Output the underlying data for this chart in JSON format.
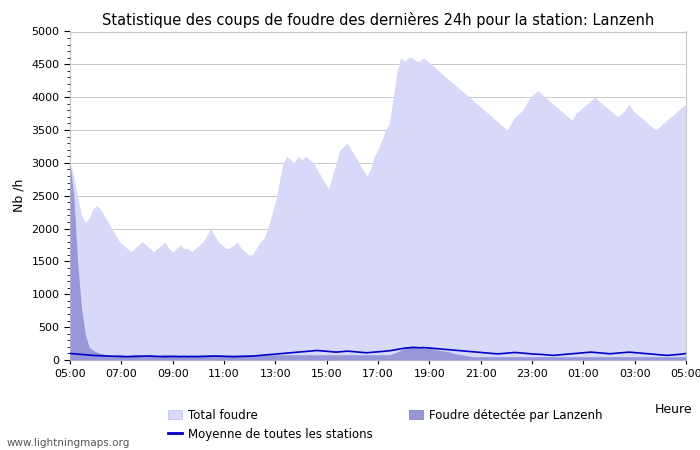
{
  "title": "Statistique des coups de foudre des dernières 24h pour la station: Lanzenh",
  "ylabel": "Nb /h",
  "xlabel": "Heure",
  "watermark": "www.lightningmaps.org",
  "ylim": [
    0,
    5000
  ],
  "x_ticks": [
    "05:00",
    "07:00",
    "09:00",
    "11:00",
    "13:00",
    "15:00",
    "17:00",
    "19:00",
    "21:00",
    "23:00",
    "01:00",
    "03:00",
    "05:00"
  ],
  "legend": {
    "total_foudre": "Total foudre",
    "moyenne": "Moyenne de toutes les stations",
    "foudre_lanzenh": "Foudre détectée par Lanzenh"
  },
  "colors": {
    "total_fill": "#d8d8f8",
    "lanzenh_fill": "#9898d8",
    "moyenne_line": "#0000cc",
    "grid": "#c8c8c8",
    "background": "#ffffff",
    "spine": "#c8c8c8"
  },
  "total_foudre": [
    3000,
    2800,
    2500,
    2200,
    2100,
    2150,
    2300,
    2350,
    2300,
    2200,
    2100,
    2000,
    1900,
    1800,
    1750,
    1700,
    1650,
    1700,
    1750,
    1800,
    1750,
    1700,
    1650,
    1700,
    1750,
    1800,
    1700,
    1650,
    1700,
    1750,
    1700,
    1700,
    1650,
    1700,
    1750,
    1800,
    1900,
    2000,
    1900,
    1800,
    1750,
    1700,
    1700,
    1750,
    1800,
    1700,
    1650,
    1600,
    1600,
    1700,
    1800,
    1850,
    2000,
    2200,
    2400,
    2700,
    3000,
    3100,
    3050,
    3000,
    3100,
    3050,
    3100,
    3050,
    3000,
    2900,
    2800,
    2700,
    2600,
    2800,
    3000,
    3200,
    3250,
    3300,
    3200,
    3100,
    3000,
    2900,
    2800,
    2900,
    3100,
    3200,
    3350,
    3500,
    3600,
    4000,
    4400,
    4600,
    4550,
    4600,
    4600,
    4550,
    4550,
    4600,
    4550,
    4500,
    4450,
    4400,
    4350,
    4300,
    4250,
    4200,
    4150,
    4100,
    4050,
    4000,
    3950,
    3900,
    3850,
    3800,
    3750,
    3700,
    3650,
    3600,
    3550,
    3500,
    3600,
    3700,
    3750,
    3800,
    3900,
    4000,
    4050,
    4100,
    4050,
    4000,
    3950,
    3900,
    3850,
    3800,
    3750,
    3700,
    3650,
    3750,
    3800,
    3850,
    3900,
    3950,
    4000,
    3950,
    3900,
    3850,
    3800,
    3750,
    3700,
    3750,
    3800,
    3900,
    3800,
    3750,
    3700,
    3650,
    3600,
    3550,
    3500,
    3550,
    3600,
    3650,
    3700,
    3750,
    3800,
    3850,
    3900
  ],
  "foudre_lanzenh": [
    3000,
    2500,
    1500,
    800,
    400,
    200,
    150,
    120,
    100,
    90,
    80,
    70,
    80,
    90,
    80,
    70,
    80,
    90,
    80,
    70,
    80,
    90,
    80,
    70,
    80,
    90,
    80,
    80,
    80,
    80,
    80,
    80,
    80,
    80,
    80,
    80,
    80,
    80,
    80,
    80,
    80,
    80,
    80,
    80,
    80,
    80,
    80,
    80,
    80,
    80,
    80,
    80,
    80,
    80,
    80,
    80,
    80,
    80,
    80,
    80,
    80,
    80,
    80,
    80,
    80,
    80,
    80,
    80,
    80,
    80,
    80,
    80,
    80,
    80,
    80,
    80,
    80,
    80,
    80,
    80,
    80,
    80,
    80,
    80,
    80,
    100,
    120,
    150,
    180,
    200,
    220,
    200,
    180,
    200,
    200,
    180,
    160,
    150,
    140,
    130,
    120,
    100,
    90,
    80,
    70,
    60,
    50,
    50,
    50,
    50,
    50,
    50,
    50,
    50,
    50,
    50,
    50,
    50,
    50,
    50,
    50,
    50,
    50,
    50,
    50,
    50,
    50,
    50,
    50,
    50,
    50,
    50,
    50,
    50,
    50,
    50,
    50,
    50,
    50,
    50,
    50,
    50,
    50,
    50,
    50,
    50,
    50,
    50,
    50,
    50,
    50,
    50,
    50,
    50,
    50,
    50,
    50,
    50,
    50,
    50,
    50,
    50,
    50
  ],
  "moyenne": [
    100,
    95,
    90,
    85,
    80,
    75,
    70,
    68,
    65,
    63,
    60,
    58,
    56,
    54,
    52,
    50,
    52,
    54,
    56,
    58,
    60,
    58,
    56,
    54,
    52,
    50,
    52,
    54,
    52,
    50,
    52,
    50,
    52,
    50,
    52,
    54,
    56,
    58,
    60,
    58,
    56,
    54,
    52,
    50,
    52,
    54,
    56,
    58,
    60,
    65,
    70,
    75,
    80,
    85,
    90,
    95,
    100,
    105,
    110,
    115,
    120,
    125,
    130,
    135,
    140,
    145,
    140,
    135,
    130,
    125,
    120,
    125,
    130,
    135,
    130,
    125,
    120,
    115,
    110,
    115,
    120,
    125,
    130,
    135,
    140,
    150,
    160,
    170,
    180,
    185,
    190,
    190,
    185,
    190,
    185,
    180,
    175,
    170,
    165,
    160,
    155,
    150,
    145,
    140,
    135,
    130,
    125,
    120,
    115,
    110,
    105,
    100,
    95,
    95,
    100,
    105,
    110,
    115,
    110,
    105,
    100,
    95,
    90,
    88,
    85,
    80,
    75,
    70,
    75,
    80,
    85,
    90,
    95,
    100,
    105,
    110,
    115,
    120,
    115,
    110,
    105,
    100,
    95,
    100,
    105,
    110,
    115,
    120,
    115,
    110,
    105,
    100,
    95,
    90,
    85,
    80,
    75,
    70,
    75,
    80,
    85,
    90,
    100
  ],
  "n_points": 163
}
